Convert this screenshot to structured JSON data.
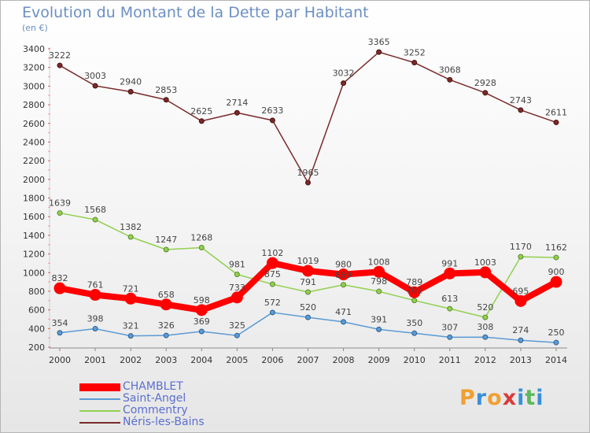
{
  "header": {
    "title": "Evolution du Montant de la Dette par Habitant",
    "unit": "(en €)"
  },
  "brand": {
    "letters": [
      "P",
      "r",
      "o",
      "x",
      "i",
      "t",
      "i"
    ],
    "colors": [
      "#f0a030",
      "#3a8fd8",
      "#f0a030",
      "#d93b3b",
      "#3a8fd8",
      "#5cb85c",
      "#3a8fd8"
    ]
  },
  "chart_data": {
    "type": "line",
    "title": "Evolution du Montant de la Dette par Habitant",
    "ylabel": "(en €)",
    "xlabel": "",
    "x": [
      2000,
      2001,
      2002,
      2003,
      2004,
      2005,
      2006,
      2007,
      2008,
      2009,
      2010,
      2011,
      2012,
      2013,
      2014
    ],
    "ylim": [
      200,
      3400
    ],
    "yticks": [
      200,
      400,
      600,
      800,
      1000,
      1200,
      1400,
      1600,
      1800,
      2000,
      2200,
      2400,
      2600,
      2800,
      3000,
      3200,
      3400
    ],
    "grid": false,
    "legend_position": "bottom-left",
    "series": [
      {
        "name": "CHAMBLET",
        "color": "#ff0000",
        "values": [
          832,
          761,
          721,
          658,
          598,
          733,
          1102,
          1019,
          980,
          1008,
          789,
          991,
          1003,
          695,
          900
        ]
      },
      {
        "name": "Saint-Angel",
        "color": "#5b9bd5",
        "values": [
          354,
          398,
          321,
          326,
          369,
          325,
          572,
          520,
          471,
          391,
          350,
          307,
          308,
          274,
          250
        ]
      },
      {
        "name": "Commentry",
        "color": "#92d050",
        "values": [
          1639,
          1568,
          1382,
          1247,
          1268,
          981,
          875,
          791,
          869,
          798,
          701,
          613,
          520,
          1170,
          1162
        ]
      },
      {
        "name": "Néris-les-Bains",
        "color": "#7a2a2a",
        "values": [
          3222,
          3003,
          2940,
          2853,
          2625,
          2714,
          2633,
          1965,
          3032,
          3365,
          3252,
          3068,
          2928,
          2743,
          2611
        ]
      }
    ]
  }
}
